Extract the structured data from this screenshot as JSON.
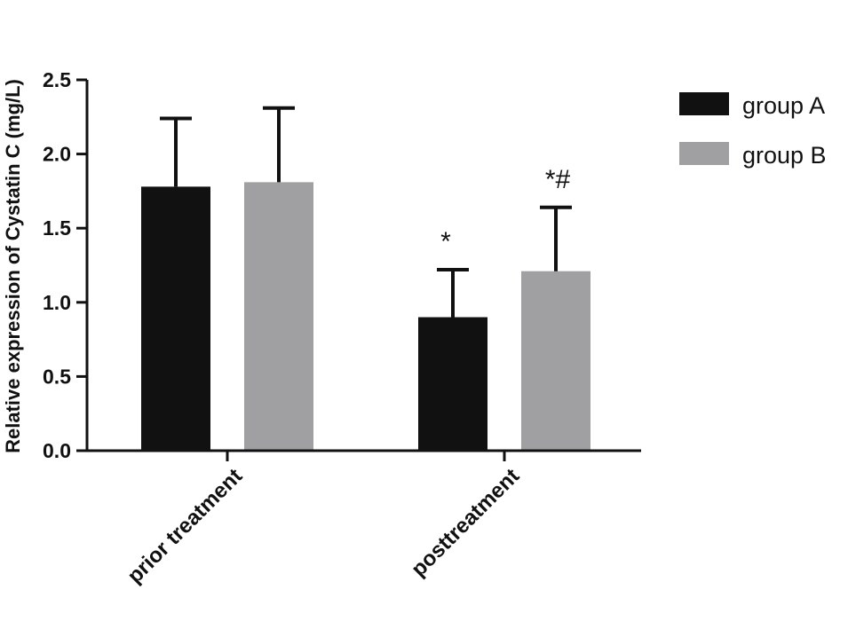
{
  "chart_data": {
    "type": "bar",
    "ylabel": "Relative expression  of  Cystatin C (mg/L)",
    "ylim": [
      0,
      2.5
    ],
    "yticks": [
      "0.0",
      "0.5",
      "1.0",
      "1.5",
      "2.0",
      "2.5"
    ],
    "categories": [
      "prior treatment",
      "posttreatment"
    ],
    "series": [
      {
        "name": "group A",
        "color": "#111111",
        "values": [
          1.78,
          0.9
        ],
        "errors": [
          0.46,
          0.32
        ]
      },
      {
        "name": "group B",
        "color": "#a0a0a3",
        "values": [
          1.81,
          1.21
        ],
        "errors": [
          0.5,
          0.43
        ]
      }
    ],
    "annotations": [
      {
        "category": 1,
        "series": 0,
        "text": "*"
      },
      {
        "category": 1,
        "series": 1,
        "text": "*#"
      }
    ],
    "legend": {
      "position": "top-right"
    },
    "grid": false
  }
}
